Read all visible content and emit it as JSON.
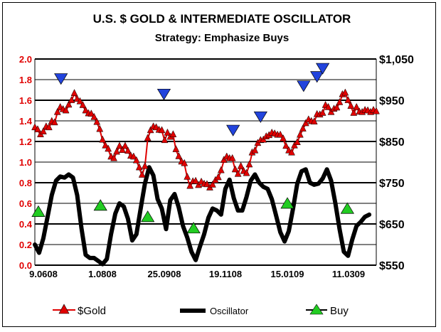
{
  "chart_data": {
    "type": "line",
    "title": "U.S. $ GOLD & INTERMEDIATE OSCILLATOR",
    "subtitle": "Strategy: Emphasize Buys",
    "x_tick_labels": [
      "9.0608",
      "1.0808",
      "25.0908",
      "19.1108",
      "15.0109",
      "11.0309"
    ],
    "left_axis": {
      "ylim": [
        0.0,
        2.0
      ],
      "ticks": [
        "0.0",
        "0.2",
        "0.4",
        "0.6",
        "0.8",
        "1.0",
        "1.2",
        "1.4",
        "1.6",
        "1.8",
        "2.0"
      ],
      "color": "#e00000"
    },
    "right_axis": {
      "ylim": [
        550,
        1050
      ],
      "ticks": [
        "$550",
        "$650",
        "$750",
        "$850",
        "$950",
        "$1,050"
      ]
    },
    "series": [
      {
        "name": "$Gold",
        "axis": "right",
        "color": "#e00000",
        "marker": "triangle",
        "values": [
          [
            0,
            883
          ],
          [
            4,
            878
          ],
          [
            8,
            866
          ],
          [
            12,
            873
          ],
          [
            16,
            885
          ],
          [
            20,
            883
          ],
          [
            24,
            898
          ],
          [
            28,
            895
          ],
          [
            32,
            920
          ],
          [
            36,
            932
          ],
          [
            40,
            927
          ],
          [
            44,
            924
          ],
          [
            48,
            938
          ],
          [
            52,
            949
          ],
          [
            56,
            966
          ],
          [
            60,
            952
          ],
          [
            64,
            946
          ],
          [
            68,
            937
          ],
          [
            72,
            924
          ],
          [
            76,
            917
          ],
          [
            80,
            916
          ],
          [
            84,
            908
          ],
          [
            88,
            896
          ],
          [
            92,
            879
          ],
          [
            96,
            853
          ],
          [
            100,
            839
          ],
          [
            104,
            831
          ],
          [
            108,
            812
          ],
          [
            112,
            808
          ],
          [
            116,
            824
          ],
          [
            120,
            838
          ],
          [
            124,
            828
          ],
          [
            128,
            838
          ],
          [
            132,
            826
          ],
          [
            136,
            814
          ],
          [
            140,
            812
          ],
          [
            144,
            803
          ],
          [
            148,
            786
          ],
          [
            152,
            768
          ],
          [
            156,
            789
          ],
          [
            160,
            857
          ],
          [
            164,
            876
          ],
          [
            168,
            885
          ],
          [
            172,
            883
          ],
          [
            176,
            877
          ],
          [
            180,
            876
          ],
          [
            184,
            852
          ],
          [
            188,
            870
          ],
          [
            192,
            860
          ],
          [
            196,
            866
          ],
          [
            200,
            830
          ],
          [
            204,
            813
          ],
          [
            208,
            800
          ],
          [
            212,
            796
          ],
          [
            216,
            763
          ],
          [
            220,
            741
          ],
          [
            224,
            752
          ],
          [
            228,
            753
          ],
          [
            232,
            743
          ],
          [
            236,
            751
          ],
          [
            240,
            746
          ],
          [
            244,
            745
          ],
          [
            248,
            737
          ],
          [
            252,
            744
          ],
          [
            256,
            755
          ],
          [
            260,
            762
          ],
          [
            264,
            779
          ],
          [
            268,
            804
          ],
          [
            272,
            812
          ],
          [
            276,
            808
          ],
          [
            280,
            808
          ],
          [
            284,
            781
          ],
          [
            288,
            770
          ],
          [
            292,
            789
          ],
          [
            296,
            777
          ],
          [
            300,
            772
          ],
          [
            304,
            793
          ],
          [
            308,
            822
          ],
          [
            312,
            827
          ],
          [
            316,
            845
          ],
          [
            320,
            852
          ],
          [
            324,
            853
          ],
          [
            328,
            861
          ],
          [
            332,
            864
          ],
          [
            336,
            870
          ],
          [
            340,
            868
          ],
          [
            344,
            865
          ],
          [
            348,
            865
          ],
          [
            352,
            856
          ],
          [
            356,
            838
          ],
          [
            360,
            827
          ],
          [
            364,
            822
          ],
          [
            368,
            839
          ],
          [
            372,
            847
          ],
          [
            376,
            865
          ],
          [
            380,
            880
          ],
          [
            384,
            893
          ],
          [
            388,
            902
          ],
          [
            392,
            898
          ],
          [
            396,
            897
          ],
          [
            400,
            915
          ],
          [
            404,
            914
          ],
          [
            408,
            918
          ],
          [
            412,
            937
          ],
          [
            416,
            932
          ],
          [
            420,
            920
          ],
          [
            424,
            928
          ],
          [
            428,
            931
          ],
          [
            432,
            944
          ],
          [
            436,
            963
          ],
          [
            440,
            967
          ],
          [
            444,
            949
          ],
          [
            448,
            935
          ],
          [
            452,
            918
          ],
          [
            456,
            932
          ],
          [
            460,
            921
          ],
          [
            464,
            920
          ],
          [
            468,
            925
          ],
          [
            472,
            924
          ],
          [
            476,
            920
          ],
          [
            480,
            925
          ],
          [
            484,
            922
          ]
        ]
      },
      {
        "name": "Oscillator",
        "axis": "left",
        "color": "#000000",
        "values": [
          [
            0,
            0.2
          ],
          [
            6,
            0.12
          ],
          [
            12,
            0.26
          ],
          [
            18,
            0.47
          ],
          [
            24,
            0.68
          ],
          [
            30,
            0.82
          ],
          [
            36,
            0.86
          ],
          [
            42,
            0.85
          ],
          [
            48,
            0.88
          ],
          [
            54,
            0.85
          ],
          [
            60,
            0.68
          ],
          [
            66,
            0.36
          ],
          [
            72,
            0.1
          ],
          [
            78,
            0.07
          ],
          [
            84,
            0.07
          ],
          [
            90,
            0.04
          ],
          [
            96,
            0.01
          ],
          [
            102,
            0.06
          ],
          [
            108,
            0.3
          ],
          [
            114,
            0.5
          ],
          [
            120,
            0.6
          ],
          [
            126,
            0.57
          ],
          [
            132,
            0.45
          ],
          [
            138,
            0.24
          ],
          [
            144,
            0.3
          ],
          [
            150,
            0.55
          ],
          [
            156,
            0.79
          ],
          [
            162,
            0.95
          ],
          [
            168,
            0.87
          ],
          [
            174,
            0.64
          ],
          [
            180,
            0.55
          ],
          [
            186,
            0.35
          ],
          [
            192,
            0.63
          ],
          [
            198,
            0.69
          ],
          [
            204,
            0.56
          ],
          [
            210,
            0.38
          ],
          [
            216,
            0.27
          ],
          [
            222,
            0.13
          ],
          [
            228,
            0.05
          ],
          [
            234,
            0.18
          ],
          [
            240,
            0.3
          ],
          [
            246,
            0.46
          ],
          [
            252,
            0.55
          ],
          [
            258,
            0.53
          ],
          [
            264,
            0.49
          ],
          [
            270,
            0.74
          ],
          [
            276,
            0.83
          ],
          [
            282,
            0.65
          ],
          [
            288,
            0.53
          ],
          [
            294,
            0.53
          ],
          [
            300,
            0.66
          ],
          [
            306,
            0.82
          ],
          [
            312,
            0.88
          ],
          [
            318,
            0.8
          ],
          [
            324,
            0.76
          ],
          [
            330,
            0.74
          ],
          [
            336,
            0.64
          ],
          [
            342,
            0.48
          ],
          [
            348,
            0.32
          ],
          [
            354,
            0.23
          ],
          [
            360,
            0.33
          ],
          [
            366,
            0.55
          ],
          [
            372,
            0.79
          ],
          [
            378,
            0.91
          ],
          [
            384,
            0.93
          ],
          [
            390,
            0.8
          ],
          [
            396,
            0.78
          ],
          [
            402,
            0.79
          ],
          [
            408,
            0.84
          ],
          [
            414,
            0.93
          ],
          [
            420,
            0.82
          ],
          [
            426,
            0.6
          ],
          [
            432,
            0.35
          ],
          [
            438,
            0.13
          ],
          [
            444,
            0.09
          ],
          [
            450,
            0.25
          ],
          [
            456,
            0.38
          ],
          [
            462,
            0.42
          ],
          [
            468,
            0.47
          ],
          [
            474,
            0.49
          ]
        ]
      }
    ],
    "buy_signals": [
      {
        "name": "Buy",
        "x": 5,
        "value": 0.52,
        "axis": "left",
        "color": "#22cc22"
      },
      {
        "name": "Buy",
        "x": 93,
        "value": 0.58,
        "axis": "left",
        "color": "#22cc22"
      },
      {
        "name": "Buy",
        "x": 160,
        "value": 0.47,
        "axis": "left",
        "color": "#22cc22"
      },
      {
        "name": "Buy",
        "x": 225,
        "value": 0.36,
        "axis": "left",
        "color": "#22cc22"
      },
      {
        "name": "Buy",
        "x": 358,
        "value": 0.6,
        "axis": "left",
        "color": "#22cc22"
      },
      {
        "name": "Buy",
        "x": 443,
        "value": 0.55,
        "axis": "left",
        "color": "#22cc22"
      }
    ],
    "sell_signals": [
      {
        "x": 37,
        "value": 1.81,
        "axis": "left",
        "color": "#2244dd"
      },
      {
        "x": 183,
        "value": 1.66,
        "axis": "left",
        "color": "#2244dd"
      },
      {
        "x": 281,
        "value": 1.31,
        "axis": "left",
        "color": "#2244dd"
      },
      {
        "x": 320,
        "value": 1.44,
        "axis": "left",
        "color": "#2244dd"
      },
      {
        "x": 381,
        "value": 1.74,
        "axis": "left",
        "color": "#2244dd"
      },
      {
        "x": 400,
        "value": 1.83,
        "axis": "left",
        "color": "#2244dd"
      },
      {
        "x": 408,
        "value": 1.91,
        "axis": "left",
        "color": "#2244dd"
      }
    ],
    "legend": [
      {
        "label": "$Gold",
        "color": "#e00000",
        "marker": "triangle"
      },
      {
        "label": "Oscillator",
        "color": "#000000",
        "marker": "line"
      },
      {
        "label": "Buy",
        "color": "#22cc22",
        "marker": "triangle"
      }
    ],
    "grid": true
  }
}
